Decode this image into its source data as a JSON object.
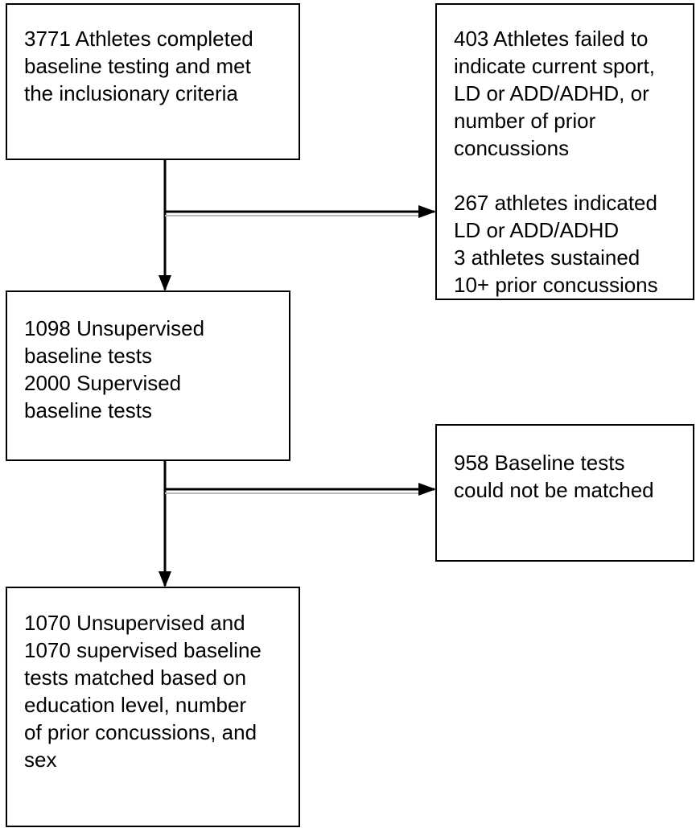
{
  "nodes": [
    {
      "lines": [
        "3771 Athletes completed",
        "baseline testing and met",
        "the inclusionary criteria"
      ]
    },
    {
      "lines": [
        "403 Athletes failed to",
        "indicate current sport,",
        "LD or ADD/ADHD, or",
        "number of prior",
        "concussions",
        "",
        "267 athletes indicated",
        "LD or ADD/ADHD",
        "3 athletes sustained",
        "10+ prior concussions"
      ]
    },
    {
      "lines": [
        "1098 Unsupervised",
        "baseline tests",
        "2000 Supervised",
        "baseline tests"
      ]
    },
    {
      "lines": [
        "958 Baseline tests",
        "could not be matched"
      ]
    },
    {
      "lines": [
        "1070 Unsupervised and",
        "1070 supervised baseline",
        "tests matched based on",
        "education level, number",
        "of prior concussions, and",
        "sex"
      ]
    }
  ]
}
